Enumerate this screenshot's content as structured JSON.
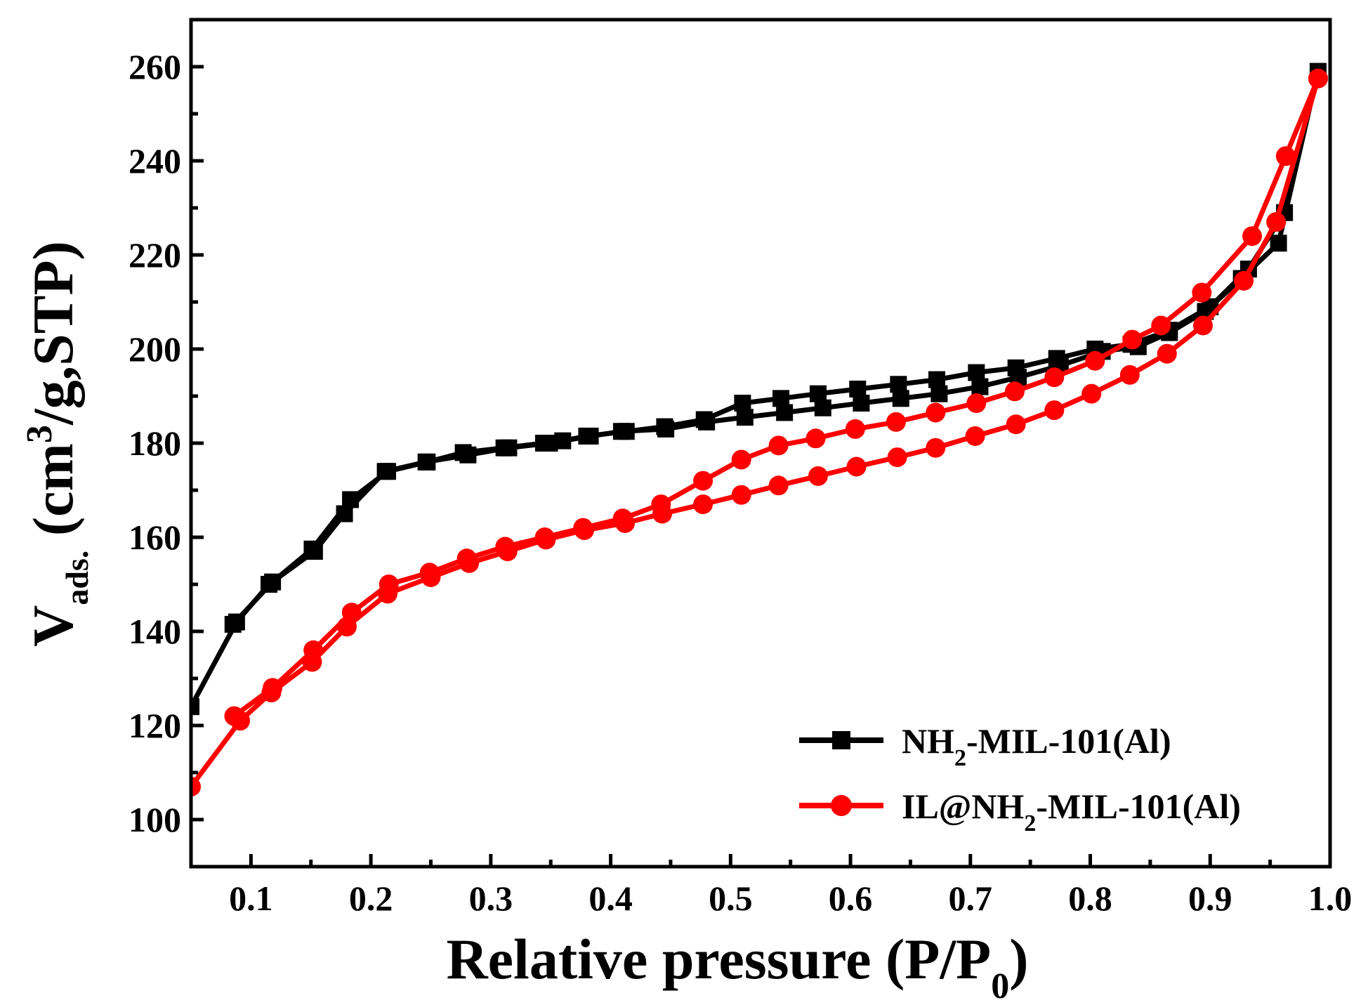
{
  "chart_data": {
    "type": "line",
    "title": "",
    "xlabel": {
      "main": "Relative pressure (P/P",
      "sub": "0",
      "close": ")"
    },
    "ylabel": {
      "v": "V",
      "v_sub": "ads.",
      "open": " (cm",
      "sup": "3",
      "rest": "/g,STP)"
    },
    "xlim": [
      0.05,
      1.0
    ],
    "ylim": [
      90,
      270
    ],
    "xticks": [
      0.1,
      0.2,
      0.3,
      0.4,
      0.5,
      0.6,
      0.7,
      0.8,
      0.9,
      1.0
    ],
    "xtick_labels": [
      "0.1",
      "0.2",
      "0.3",
      "0.4",
      "0.5",
      "0.6",
      "0.7",
      "0.8",
      "0.9",
      "1.0"
    ],
    "yticks": [
      100,
      120,
      140,
      160,
      180,
      200,
      220,
      240,
      260
    ],
    "ytick_labels": [
      "100",
      "120",
      "140",
      "160",
      "180",
      "200",
      "220",
      "240",
      "260"
    ],
    "legend_position": "bottom-right",
    "series": [
      {
        "name": "NH2-MIL-101(Al)",
        "legend": {
          "a": "NH",
          "sub": "2",
          "b": "-MIL-101(Al)"
        },
        "color": "#000000",
        "marker": "square",
        "adsorption": {
          "x": [
            0.05,
            0.088,
            0.115,
            0.153,
            0.178,
            0.212,
            0.246,
            0.281,
            0.315,
            0.349,
            0.383,
            0.409,
            0.446,
            0.48,
            0.512,
            0.545,
            0.577,
            0.609,
            0.642,
            0.674,
            0.708,
            0.74,
            0.775,
            0.81,
            0.84,
            0.866,
            0.896,
            0.926,
            0.957,
            0.99
          ],
          "y": [
            124,
            142,
            150,
            157,
            165,
            174,
            176,
            177.5,
            179,
            180,
            181.5,
            182.5,
            183,
            184.5,
            185.5,
            186.5,
            187.5,
            188.5,
            189.5,
            190.5,
            192,
            194,
            196.5,
            199.5,
            200.5,
            203.5,
            208,
            215,
            222.5,
            259
          ]
        },
        "desorption": {
          "x": [
            0.99,
            0.962,
            0.932,
            0.9,
            0.866,
            0.834,
            0.804,
            0.772,
            0.738,
            0.705,
            0.672,
            0.64,
            0.606,
            0.573,
            0.542,
            0.51,
            0.478,
            0.445,
            0.413,
            0.38,
            0.36,
            0.344,
            0.311,
            0.277,
            0.247,
            0.214,
            0.183,
            0.151,
            0.118,
            0.085
          ],
          "y": [
            259,
            229,
            217,
            209,
            204,
            201,
            200,
            198,
            196,
            195,
            193.5,
            192.5,
            191.5,
            190.5,
            189.5,
            188.5,
            185,
            183.5,
            182.5,
            181.5,
            180.5,
            180,
            179,
            178,
            176,
            174,
            168,
            157.5,
            150.5,
            141.5
          ]
        }
      },
      {
        "name": "IL@NH2-MIL-101(Al)",
        "legend": {
          "a": "IL@NH",
          "sub": "2",
          "b": "-MIL-101(Al)"
        },
        "color": "#ff0000",
        "marker": "circle",
        "adsorption": {
          "x": [
            0.05,
            0.091,
            0.117,
            0.151,
            0.18,
            0.214,
            0.25,
            0.282,
            0.314,
            0.346,
            0.378,
            0.412,
            0.443,
            0.477,
            0.509,
            0.54,
            0.573,
            0.605,
            0.639,
            0.671,
            0.704,
            0.738,
            0.77,
            0.801,
            0.833,
            0.864,
            0.894,
            0.928,
            0.955,
            0.99
          ],
          "y": [
            107,
            121,
            127,
            133.5,
            141,
            148,
            151.5,
            154.5,
            157,
            159.5,
            161.5,
            163,
            165,
            167,
            169,
            171,
            173,
            175,
            177,
            179,
            181.5,
            184,
            187,
            190.5,
            194.5,
            199,
            205,
            214.5,
            227,
            257.5
          ]
        },
        "desorption": {
          "x": [
            0.99,
            0.963,
            0.935,
            0.893,
            0.859,
            0.835,
            0.804,
            0.77,
            0.737,
            0.705,
            0.671,
            0.638,
            0.604,
            0.571,
            0.54,
            0.509,
            0.477,
            0.442,
            0.41,
            0.377,
            0.345,
            0.312,
            0.28,
            0.249,
            0.215,
            0.184,
            0.152,
            0.118,
            0.086
          ],
          "y": [
            257.5,
            241,
            224,
            212,
            205,
            202,
            197.5,
            194,
            191,
            188.5,
            186.5,
            184.5,
            183,
            181,
            179.5,
            176.5,
            172,
            167,
            164,
            162,
            160,
            158,
            155.5,
            152.5,
            150,
            144,
            136,
            128,
            122
          ]
        }
      }
    ]
  }
}
